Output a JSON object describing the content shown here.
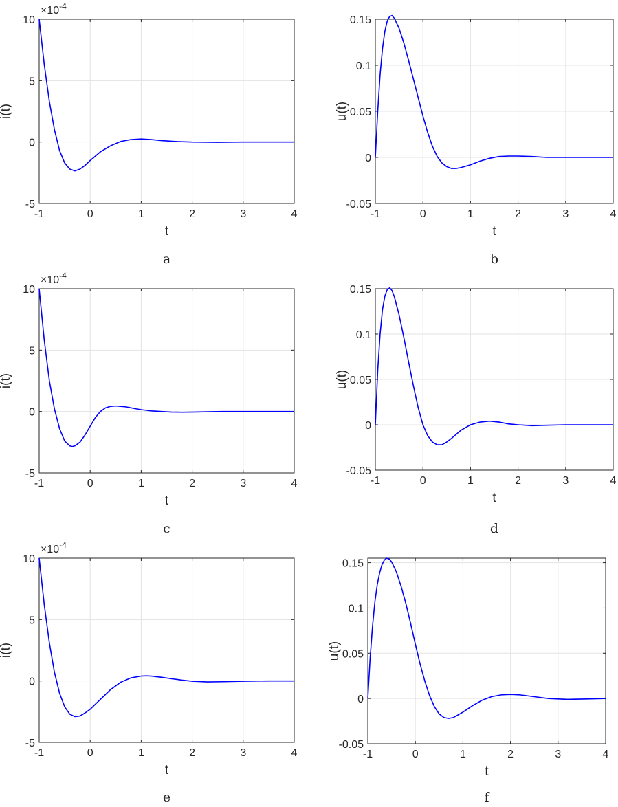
{
  "colors": {
    "series": "#0000ff",
    "axis": "#262626",
    "grid": "#e3e3e3"
  },
  "chart_data": [
    {
      "type": "line",
      "caption": "a",
      "xlabel": "t",
      "ylabel": "i(t)",
      "exponent_label": "×10^-4",
      "xlim": [
        -1,
        4
      ],
      "ylim": [
        -5,
        10
      ],
      "xticks": [
        -1,
        0,
        1,
        2,
        3,
        4
      ],
      "xtick_labels": [
        "-1",
        "0",
        "1",
        "2",
        "3",
        "4"
      ],
      "yticks": [
        -5,
        0,
        5,
        10
      ],
      "ytick_labels": [
        "-5",
        "0",
        "5",
        "10"
      ],
      "grid": true,
      "series": [
        {
          "x": [
            -1,
            -0.9,
            -0.8,
            -0.7,
            -0.6,
            -0.5,
            -0.4,
            -0.3,
            -0.2,
            -0.1,
            0,
            0.2,
            0.4,
            0.6,
            0.8,
            1.0,
            1.2,
            1.4,
            1.7,
            2.0,
            2.5,
            3.0,
            3.5,
            4.0
          ],
          "y": [
            10,
            6.3,
            3.3,
            1.0,
            -0.7,
            -1.7,
            -2.2,
            -2.35,
            -2.2,
            -1.9,
            -1.5,
            -0.8,
            -0.3,
            0.05,
            0.2,
            0.25,
            0.2,
            0.12,
            0.04,
            0,
            -0.02,
            0,
            0,
            0
          ]
        }
      ]
    },
    {
      "type": "line",
      "caption": "b",
      "xlabel": "t",
      "ylabel": "u(t)",
      "xlim": [
        -1,
        4
      ],
      "ylim": [
        -0.05,
        0.15
      ],
      "xticks": [
        -1,
        0,
        1,
        2,
        3,
        4
      ],
      "xtick_labels": [
        "-1",
        "0",
        "1",
        "2",
        "3",
        "4"
      ],
      "yticks": [
        -0.05,
        0,
        0.05,
        0.1,
        0.15
      ],
      "ytick_labels": [
        "-0.05",
        "0",
        "0.05",
        "0.1",
        "0.15"
      ],
      "grid": true,
      "series": [
        {
          "x": [
            -1,
            -0.95,
            -0.9,
            -0.85,
            -0.8,
            -0.75,
            -0.7,
            -0.65,
            -0.6,
            -0.5,
            -0.4,
            -0.3,
            -0.2,
            -0.1,
            0,
            0.1,
            0.2,
            0.3,
            0.4,
            0.5,
            0.6,
            0.7,
            0.8,
            1.0,
            1.2,
            1.4,
            1.6,
            1.8,
            2.0,
            2.3,
            2.6,
            3.0,
            3.5,
            4.0
          ],
          "y": [
            0,
            0.05,
            0.09,
            0.118,
            0.137,
            0.148,
            0.153,
            0.154,
            0.151,
            0.14,
            0.124,
            0.105,
            0.085,
            0.065,
            0.045,
            0.027,
            0.012,
            0.001,
            -0.006,
            -0.01,
            -0.012,
            -0.012,
            -0.011,
            -0.008,
            -0.004,
            -0.001,
            0.001,
            0.0015,
            0.0015,
            0.001,
            0,
            0,
            0,
            0
          ]
        }
      ]
    },
    {
      "type": "line",
      "caption": "c",
      "xlabel": "t",
      "ylabel": "i(t)",
      "exponent_label": "×10^-4",
      "xlim": [
        -1,
        4
      ],
      "ylim": [
        -5,
        10
      ],
      "xticks": [
        -1,
        0,
        1,
        2,
        3,
        4
      ],
      "xtick_labels": [
        "-1",
        "0",
        "1",
        "2",
        "3",
        "4"
      ],
      "yticks": [
        -5,
        0,
        5,
        10
      ],
      "ytick_labels": [
        "-5",
        "0",
        "5",
        "10"
      ],
      "grid": true,
      "series": [
        {
          "x": [
            -1,
            -0.9,
            -0.8,
            -0.7,
            -0.6,
            -0.5,
            -0.4,
            -0.35,
            -0.3,
            -0.2,
            -0.1,
            0,
            0.1,
            0.2,
            0.3,
            0.4,
            0.5,
            0.6,
            0.7,
            0.8,
            0.9,
            1.0,
            1.2,
            1.4,
            1.6,
            1.8,
            2.0,
            2.3,
            2.6,
            3.0,
            3.5,
            4.0
          ],
          "y": [
            10,
            5.8,
            2.5,
            0.2,
            -1.4,
            -2.4,
            -2.8,
            -2.85,
            -2.8,
            -2.5,
            -1.9,
            -1.2,
            -0.5,
            0,
            0.3,
            0.42,
            0.45,
            0.42,
            0.38,
            0.3,
            0.22,
            0.15,
            0.05,
            0,
            -0.05,
            -0.06,
            -0.05,
            -0.02,
            0,
            0,
            0,
            0
          ]
        }
      ]
    },
    {
      "type": "line",
      "caption": "d",
      "xlabel": "t",
      "ylabel": "u(t)",
      "xlim": [
        -1,
        4
      ],
      "ylim": [
        -0.05,
        0.15
      ],
      "xticks": [
        -1,
        0,
        1,
        2,
        3,
        4
      ],
      "xtick_labels": [
        "-1",
        "0",
        "1",
        "2",
        "3",
        "4"
      ],
      "yticks": [
        -0.05,
        0,
        0.05,
        0.1,
        0.15
      ],
      "ytick_labels": [
        "-0.05",
        "0",
        "0.05",
        "0.1",
        "0.15"
      ],
      "grid": true,
      "series": [
        {
          "x": [
            -1,
            -0.95,
            -0.9,
            -0.85,
            -0.8,
            -0.75,
            -0.7,
            -0.65,
            -0.6,
            -0.5,
            -0.4,
            -0.3,
            -0.2,
            -0.1,
            0,
            0.1,
            0.2,
            0.3,
            0.4,
            0.5,
            0.6,
            0.8,
            1.0,
            1.2,
            1.4,
            1.6,
            1.8,
            2.0,
            2.3,
            2.6,
            3.0,
            3.5,
            4.0
          ],
          "y": [
            0,
            0.06,
            0.1,
            0.127,
            0.142,
            0.149,
            0.151,
            0.148,
            0.141,
            0.121,
            0.096,
            0.069,
            0.043,
            0.019,
            0,
            -0.012,
            -0.019,
            -0.022,
            -0.022,
            -0.019,
            -0.015,
            -0.006,
            0,
            0.003,
            0.004,
            0.003,
            0.001,
            0,
            -0.001,
            -0.0005,
            0,
            0,
            0
          ]
        }
      ]
    },
    {
      "type": "line",
      "caption": "e",
      "xlabel": "t",
      "ylabel": "i(t)",
      "exponent_label": "×10^-4",
      "xlim": [
        -1,
        4
      ],
      "ylim": [
        -5,
        10
      ],
      "xticks": [
        -1,
        0,
        1,
        2,
        3,
        4
      ],
      "xtick_labels": [
        "-1",
        "0",
        "1",
        "2",
        "3",
        "4"
      ],
      "yticks": [
        -5,
        0,
        5,
        10
      ],
      "ytick_labels": [
        "-5",
        "0",
        "5",
        "10"
      ],
      "grid": true,
      "series": [
        {
          "x": [
            -1,
            -0.9,
            -0.8,
            -0.7,
            -0.6,
            -0.5,
            -0.4,
            -0.3,
            -0.2,
            -0.1,
            0,
            0.1,
            0.2,
            0.4,
            0.6,
            0.8,
            1.0,
            1.1,
            1.2,
            1.4,
            1.6,
            1.8,
            2.0,
            2.3,
            2.6,
            3.0,
            3.5,
            4.0
          ],
          "y": [
            10,
            6.2,
            3.1,
            0.7,
            -1.0,
            -2.1,
            -2.7,
            -2.9,
            -2.85,
            -2.6,
            -2.3,
            -1.9,
            -1.5,
            -0.7,
            -0.1,
            0.25,
            0.4,
            0.42,
            0.4,
            0.3,
            0.18,
            0.07,
            -0.02,
            -0.08,
            -0.06,
            -0.02,
            0,
            0
          ]
        }
      ]
    },
    {
      "type": "line",
      "caption": "f",
      "xlabel": "t",
      "ylabel": "u(t)",
      "xlim": [
        -1,
        4
      ],
      "ylim": [
        -0.05,
        0.155
      ],
      "xticks": [
        -1,
        0,
        1,
        2,
        3,
        4
      ],
      "xtick_labels": [
        "-1",
        "0",
        "1",
        "2",
        "3",
        "4"
      ],
      "yticks": [
        -0.05,
        0,
        0.05,
        0.1,
        0.15
      ],
      "ytick_labels": [
        "-0.05",
        "0",
        "0.05",
        "0.1",
        "0.15"
      ],
      "grid": true,
      "series": [
        {
          "x": [
            -1,
            -0.95,
            -0.9,
            -0.85,
            -0.8,
            -0.75,
            -0.7,
            -0.65,
            -0.6,
            -0.55,
            -0.5,
            -0.4,
            -0.3,
            -0.2,
            -0.1,
            0,
            0.1,
            0.2,
            0.3,
            0.4,
            0.5,
            0.6,
            0.7,
            0.8,
            1.0,
            1.2,
            1.4,
            1.6,
            1.8,
            2.0,
            2.2,
            2.5,
            2.8,
            3.2,
            3.6,
            4.0
          ],
          "y": [
            0,
            0.045,
            0.08,
            0.107,
            0.126,
            0.139,
            0.148,
            0.153,
            0.155,
            0.154,
            0.151,
            0.14,
            0.124,
            0.105,
            0.083,
            0.06,
            0.038,
            0.019,
            0.003,
            -0.009,
            -0.017,
            -0.021,
            -0.022,
            -0.021,
            -0.015,
            -0.008,
            -0.002,
            0.002,
            0.004,
            0.0045,
            0.004,
            0.002,
            0,
            -0.001,
            -0.0005,
            0
          ]
        }
      ]
    }
  ]
}
